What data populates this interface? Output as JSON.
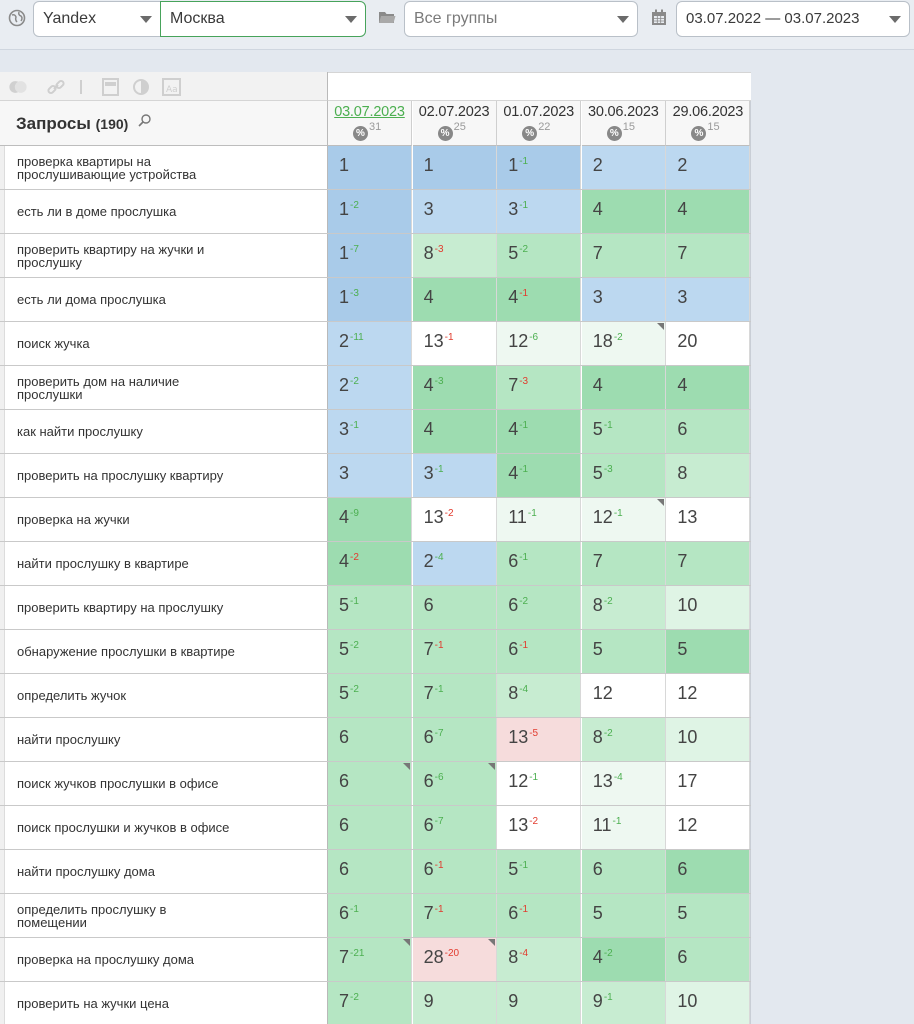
{
  "filters": {
    "engine": "Yandex",
    "region": "Москва",
    "group": "Все группы",
    "date_range": "03.07.2022 — 03.07.2023"
  },
  "table": {
    "queries_label": "Запросы",
    "queries_count": "(190)",
    "dates": [
      {
        "date": "03.07.2023",
        "pct": "31",
        "active": true
      },
      {
        "date": "02.07.2023",
        "pct": "25",
        "active": false
      },
      {
        "date": "01.07.2023",
        "pct": "22",
        "active": false
      },
      {
        "date": "30.06.2023",
        "pct": "15",
        "active": false
      },
      {
        "date": "29.06.2023",
        "pct": "15",
        "active": false
      }
    ],
    "rows": [
      {
        "q": "проверка квартиры на прослушивающие устройства",
        "c": [
          [
            "1",
            "",
            "",
            "blue1",
            false
          ],
          [
            "1",
            "",
            "",
            "blue1",
            false
          ],
          [
            "1",
            "-1",
            "up",
            "blue1",
            false
          ],
          [
            "2",
            "",
            "",
            "blue2",
            false
          ],
          [
            "2",
            "",
            "",
            "blue2",
            false
          ]
        ]
      },
      {
        "q": "есть ли в доме прослушка",
        "c": [
          [
            "1",
            "-2",
            "up",
            "blue1",
            false
          ],
          [
            "3",
            "",
            "",
            "blue2",
            false
          ],
          [
            "3",
            "-1",
            "up",
            "blue2",
            false
          ],
          [
            "4",
            "",
            "",
            "green1",
            false
          ],
          [
            "4",
            "",
            "",
            "green1",
            false
          ]
        ]
      },
      {
        "q": "проверить квартиру на жучки и прослушку",
        "c": [
          [
            "1",
            "-7",
            "up",
            "blue1",
            false
          ],
          [
            "8",
            "-3",
            "dn",
            "green3",
            false
          ],
          [
            "5",
            "-2",
            "up",
            "green2",
            false
          ],
          [
            "7",
            "",
            "",
            "green2",
            false
          ],
          [
            "7",
            "",
            "",
            "green2",
            false
          ]
        ]
      },
      {
        "q": "есть ли дома прослушка",
        "c": [
          [
            "1",
            "-3",
            "up",
            "blue1",
            false
          ],
          [
            "4",
            "",
            "",
            "green1",
            false
          ],
          [
            "4",
            "-1",
            "dn",
            "green1",
            false
          ],
          [
            "3",
            "",
            "",
            "blue2",
            false
          ],
          [
            "3",
            "",
            "",
            "blue2",
            false
          ]
        ]
      },
      {
        "q": "поиск жучка",
        "c": [
          [
            "2",
            "-11",
            "up",
            "blue2",
            false
          ],
          [
            "13",
            "-1",
            "dn",
            "white",
            false
          ],
          [
            "12",
            "-6",
            "up",
            "pale",
            false
          ],
          [
            "18",
            "-2",
            "up",
            "pale",
            true
          ],
          [
            "20",
            "",
            "",
            "white",
            false
          ]
        ]
      },
      {
        "q": "проверить дом на наличие прослушки",
        "c": [
          [
            "2",
            "-2",
            "up",
            "blue2",
            false
          ],
          [
            "4",
            "-3",
            "up",
            "green1",
            false
          ],
          [
            "7",
            "-3",
            "dn",
            "green2",
            false
          ],
          [
            "4",
            "",
            "",
            "green1",
            false
          ],
          [
            "4",
            "",
            "",
            "green1",
            false
          ]
        ]
      },
      {
        "q": "как найти прослушку",
        "c": [
          [
            "3",
            "-1",
            "up",
            "blue2",
            false
          ],
          [
            "4",
            "",
            "",
            "green1",
            false
          ],
          [
            "4",
            "-1",
            "up",
            "green1",
            false
          ],
          [
            "5",
            "-1",
            "up",
            "green2",
            false
          ],
          [
            "6",
            "",
            "",
            "green2",
            false
          ]
        ]
      },
      {
        "q": "проверить на прослушку квартиру",
        "c": [
          [
            "3",
            "",
            "",
            "blue2",
            false
          ],
          [
            "3",
            "-1",
            "up",
            "blue2",
            false
          ],
          [
            "4",
            "-1",
            "up",
            "green1",
            false
          ],
          [
            "5",
            "-3",
            "up",
            "green2",
            false
          ],
          [
            "8",
            "",
            "",
            "green3",
            false
          ]
        ]
      },
      {
        "q": "проверка на жучки",
        "c": [
          [
            "4",
            "-9",
            "up",
            "green1",
            false
          ],
          [
            "13",
            "-2",
            "dn",
            "white",
            false
          ],
          [
            "11",
            "-1",
            "up",
            "pale",
            false
          ],
          [
            "12",
            "-1",
            "up",
            "pale",
            true
          ],
          [
            "13",
            "",
            "",
            "white",
            false
          ]
        ]
      },
      {
        "q": "найти прослушку в квартире",
        "c": [
          [
            "4",
            "-2",
            "dn",
            "green1",
            false
          ],
          [
            "2",
            "-4",
            "up",
            "blue2",
            false
          ],
          [
            "6",
            "-1",
            "up",
            "green2",
            false
          ],
          [
            "7",
            "",
            "",
            "green2",
            false
          ],
          [
            "7",
            "",
            "",
            "green2",
            false
          ]
        ]
      },
      {
        "q": "проверить квартиру на прослушку",
        "c": [
          [
            "5",
            "-1",
            "up",
            "green2",
            false
          ],
          [
            "6",
            "",
            "",
            "green2",
            false
          ],
          [
            "6",
            "-2",
            "up",
            "green2",
            false
          ],
          [
            "8",
            "-2",
            "up",
            "green3",
            false
          ],
          [
            "10",
            "",
            "",
            "green4",
            false
          ]
        ]
      },
      {
        "q": "обнаружение прослушки в квартире",
        "c": [
          [
            "5",
            "-2",
            "up",
            "green2",
            false
          ],
          [
            "7",
            "-1",
            "dn",
            "green2",
            false
          ],
          [
            "6",
            "-1",
            "dn",
            "green2",
            false
          ],
          [
            "5",
            "",
            "",
            "green2",
            false
          ],
          [
            "5",
            "",
            "",
            "green1",
            false
          ]
        ]
      },
      {
        "q": "определить жучок",
        "c": [
          [
            "5",
            "-2",
            "up",
            "green2",
            false
          ],
          [
            "7",
            "-1",
            "up",
            "green2",
            false
          ],
          [
            "8",
            "-4",
            "up",
            "green3",
            false
          ],
          [
            "12",
            "",
            "",
            "white",
            false
          ],
          [
            "12",
            "",
            "",
            "white",
            false
          ]
        ]
      },
      {
        "q": "найти прослушку",
        "c": [
          [
            "6",
            "",
            "",
            "green2",
            false
          ],
          [
            "6",
            "-7",
            "up",
            "green2",
            false
          ],
          [
            "13",
            "-5",
            "dn",
            "pink",
            false
          ],
          [
            "8",
            "-2",
            "up",
            "green3",
            false
          ],
          [
            "10",
            "",
            "",
            "green4",
            false
          ]
        ]
      },
      {
        "q": "поиск жучков прослушки в офисе",
        "c": [
          [
            "6",
            "",
            "",
            "green2",
            true
          ],
          [
            "6",
            "-6",
            "up",
            "green2",
            true
          ],
          [
            "12",
            "-1",
            "up",
            "white",
            false
          ],
          [
            "13",
            "-4",
            "up",
            "pale",
            false
          ],
          [
            "17",
            "",
            "",
            "white",
            false
          ]
        ]
      },
      {
        "q": "поиск прослушки и жучков в офисе",
        "c": [
          [
            "6",
            "",
            "",
            "green2",
            false
          ],
          [
            "6",
            "-7",
            "up",
            "green2",
            false
          ],
          [
            "13",
            "-2",
            "dn",
            "white",
            false
          ],
          [
            "11",
            "-1",
            "up",
            "pale",
            false
          ],
          [
            "12",
            "",
            "",
            "white",
            false
          ]
        ]
      },
      {
        "q": "найти прослушку дома",
        "c": [
          [
            "6",
            "",
            "",
            "green2",
            false
          ],
          [
            "6",
            "-1",
            "dn",
            "green2",
            false
          ],
          [
            "5",
            "-1",
            "up",
            "green2",
            false
          ],
          [
            "6",
            "",
            "",
            "green2",
            false
          ],
          [
            "6",
            "",
            "",
            "green1",
            false
          ]
        ]
      },
      {
        "q": "определить прослушку в помещении",
        "c": [
          [
            "6",
            "-1",
            "up",
            "green2",
            false
          ],
          [
            "7",
            "-1",
            "dn",
            "green2",
            false
          ],
          [
            "6",
            "-1",
            "dn",
            "green2",
            false
          ],
          [
            "5",
            "",
            "",
            "green2",
            false
          ],
          [
            "5",
            "",
            "",
            "green2",
            false
          ]
        ]
      },
      {
        "q": "проверка на прослушку дома",
        "c": [
          [
            "7",
            "-21",
            "up",
            "green2",
            true
          ],
          [
            "28",
            "-20",
            "dn",
            "pink",
            true
          ],
          [
            "8",
            "-4",
            "dn",
            "green3",
            false
          ],
          [
            "4",
            "-2",
            "up",
            "green1",
            false
          ],
          [
            "6",
            "",
            "",
            "green2",
            false
          ]
        ]
      },
      {
        "q": "проверить на жучки цена",
        "c": [
          [
            "7",
            "-2",
            "up",
            "green2",
            false
          ],
          [
            "9",
            "",
            "",
            "green3",
            false
          ],
          [
            "9",
            "",
            "",
            "green3",
            false
          ],
          [
            "9",
            "-1",
            "up",
            "green3",
            false
          ],
          [
            "10",
            "",
            "",
            "green4",
            false
          ]
        ]
      }
    ]
  }
}
